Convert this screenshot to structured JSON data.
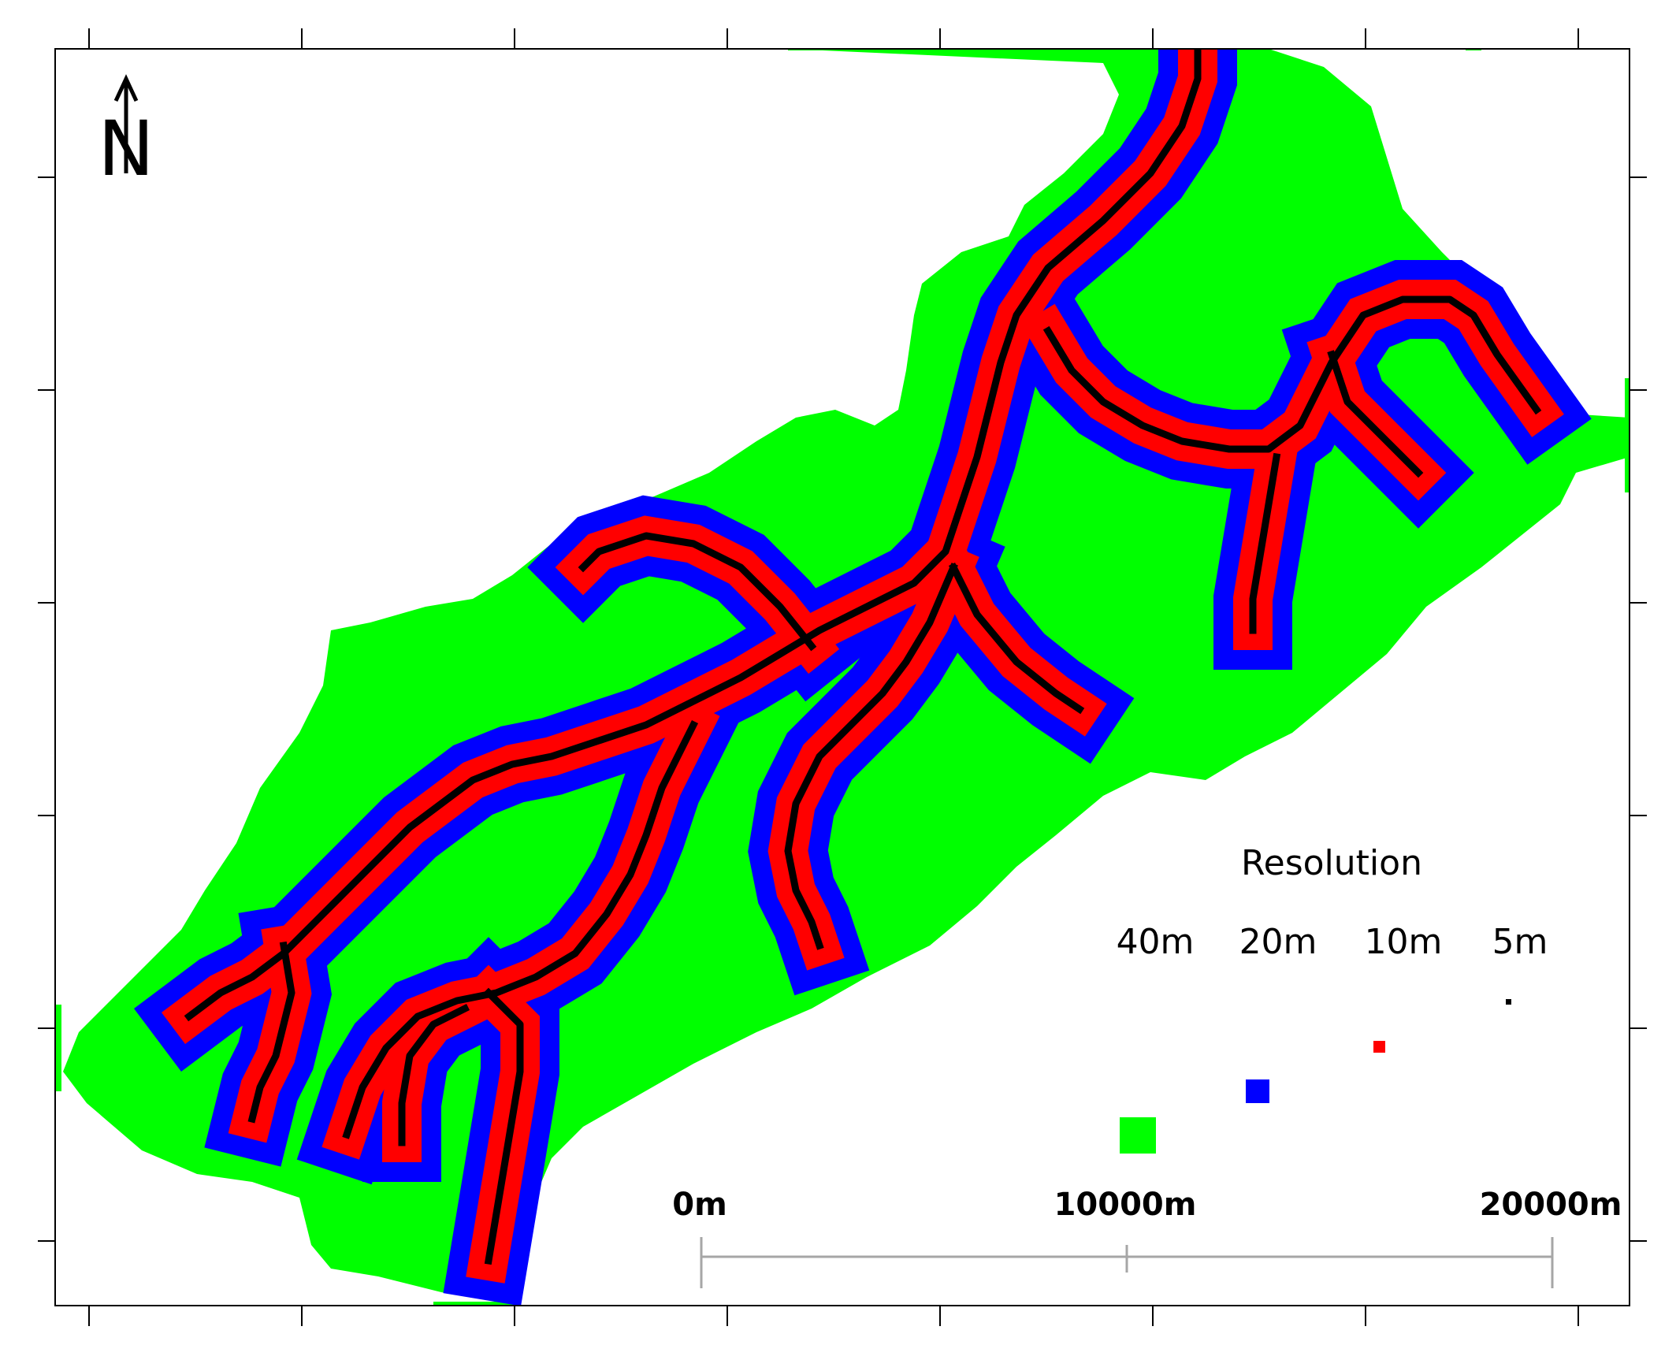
{
  "colors": {
    "res_40m": "#00ff00",
    "res_20m": "#0000ff",
    "res_10m": "#ff0000",
    "res_5m": "#000000",
    "frame": "#000000",
    "scalebar": "#a6a6a6"
  },
  "north_arrow": {
    "letter": "N",
    "icon": "north-arrow-icon"
  },
  "legend": {
    "title": "Resolution",
    "items": [
      {
        "label": "40m",
        "color_key": "res_40m"
      },
      {
        "label": "20m",
        "color_key": "res_20m"
      },
      {
        "label": "10m",
        "color_key": "res_10m"
      },
      {
        "label": "5m",
        "color_key": "res_5m"
      }
    ]
  },
  "scale_bar": {
    "labels": [
      "0m",
      "10000m",
      "20000m"
    ]
  }
}
